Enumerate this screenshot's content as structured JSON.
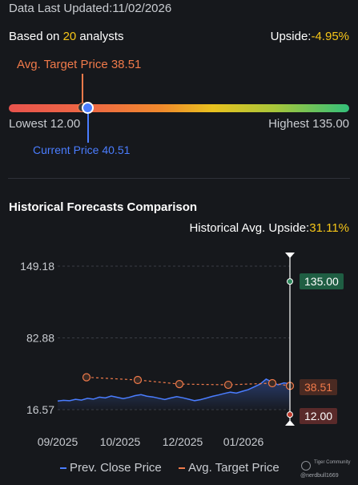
{
  "header": {
    "last_updated": "Data Last Updated:11/02/2026",
    "based_on_prefix": "Based on ",
    "analyst_count": "20",
    "based_on_suffix": " analysts",
    "upside_label": "Upside:",
    "upside_value": "-4.95%"
  },
  "range": {
    "avg_target": "Avg. Target Price 38.51",
    "lowest": "Lowest 12.00",
    "highest": "Highest 135.00",
    "current": "Current Price 40.51",
    "low_value": 12.0,
    "high_value": 135.0,
    "avg_target_value": 38.51,
    "current_value": 40.51
  },
  "history": {
    "title": "Historical Forecasts Comparison",
    "avg_upside_label": "Historical Avg. Upside:",
    "avg_upside_value": "31.11%"
  },
  "chart_data": {
    "type": "line",
    "y_ticks": [
      "149.18",
      "82.88",
      "16.57"
    ],
    "x_ticks": [
      "09/2025",
      "10/2025",
      "12/2025",
      "01/2026"
    ],
    "ylim": [
      16.57,
      149.18
    ],
    "series": [
      {
        "name": "Prev. Close Price",
        "color": "#4a7dff",
        "values": [
          24.5,
          25.2,
          24.8,
          26.1,
          25.4,
          27.0,
          26.3,
          28.1,
          27.4,
          29.2,
          28.0,
          26.8,
          27.9,
          29.5,
          30.4,
          29.0,
          28.3,
          27.1,
          26.0,
          27.4,
          28.6,
          27.5,
          26.2,
          24.9,
          25.8,
          27.3,
          28.9,
          30.1,
          31.5,
          32.7,
          31.8,
          33.5,
          35.0,
          37.6,
          40.2,
          44.8,
          42.1,
          39.5,
          41.3,
          40.51
        ]
      },
      {
        "name": "Avg. Target Price",
        "color": "#f07a4a",
        "values": [
          46.5,
          44.0,
          40.2,
          39.5,
          41.0,
          38.51
        ]
      }
    ],
    "range_markers": {
      "high": "135.00",
      "avg": "38.51",
      "low": "12.00",
      "high_value": 135.0,
      "avg_value": 38.51,
      "low_value": 12.0
    }
  },
  "legend": {
    "prev_close": "Prev. Close Price",
    "avg_target": "Avg. Target Price"
  },
  "watermark": {
    "brand": "Tiger Community",
    "user": "@nerdbull1669"
  },
  "colors": {
    "upside_yellow": "#f5c518",
    "avg_orange": "#f07a4a",
    "current_blue": "#4a7dff",
    "high_green": "#1f5e43",
    "low_red": "#5a2a2a"
  }
}
